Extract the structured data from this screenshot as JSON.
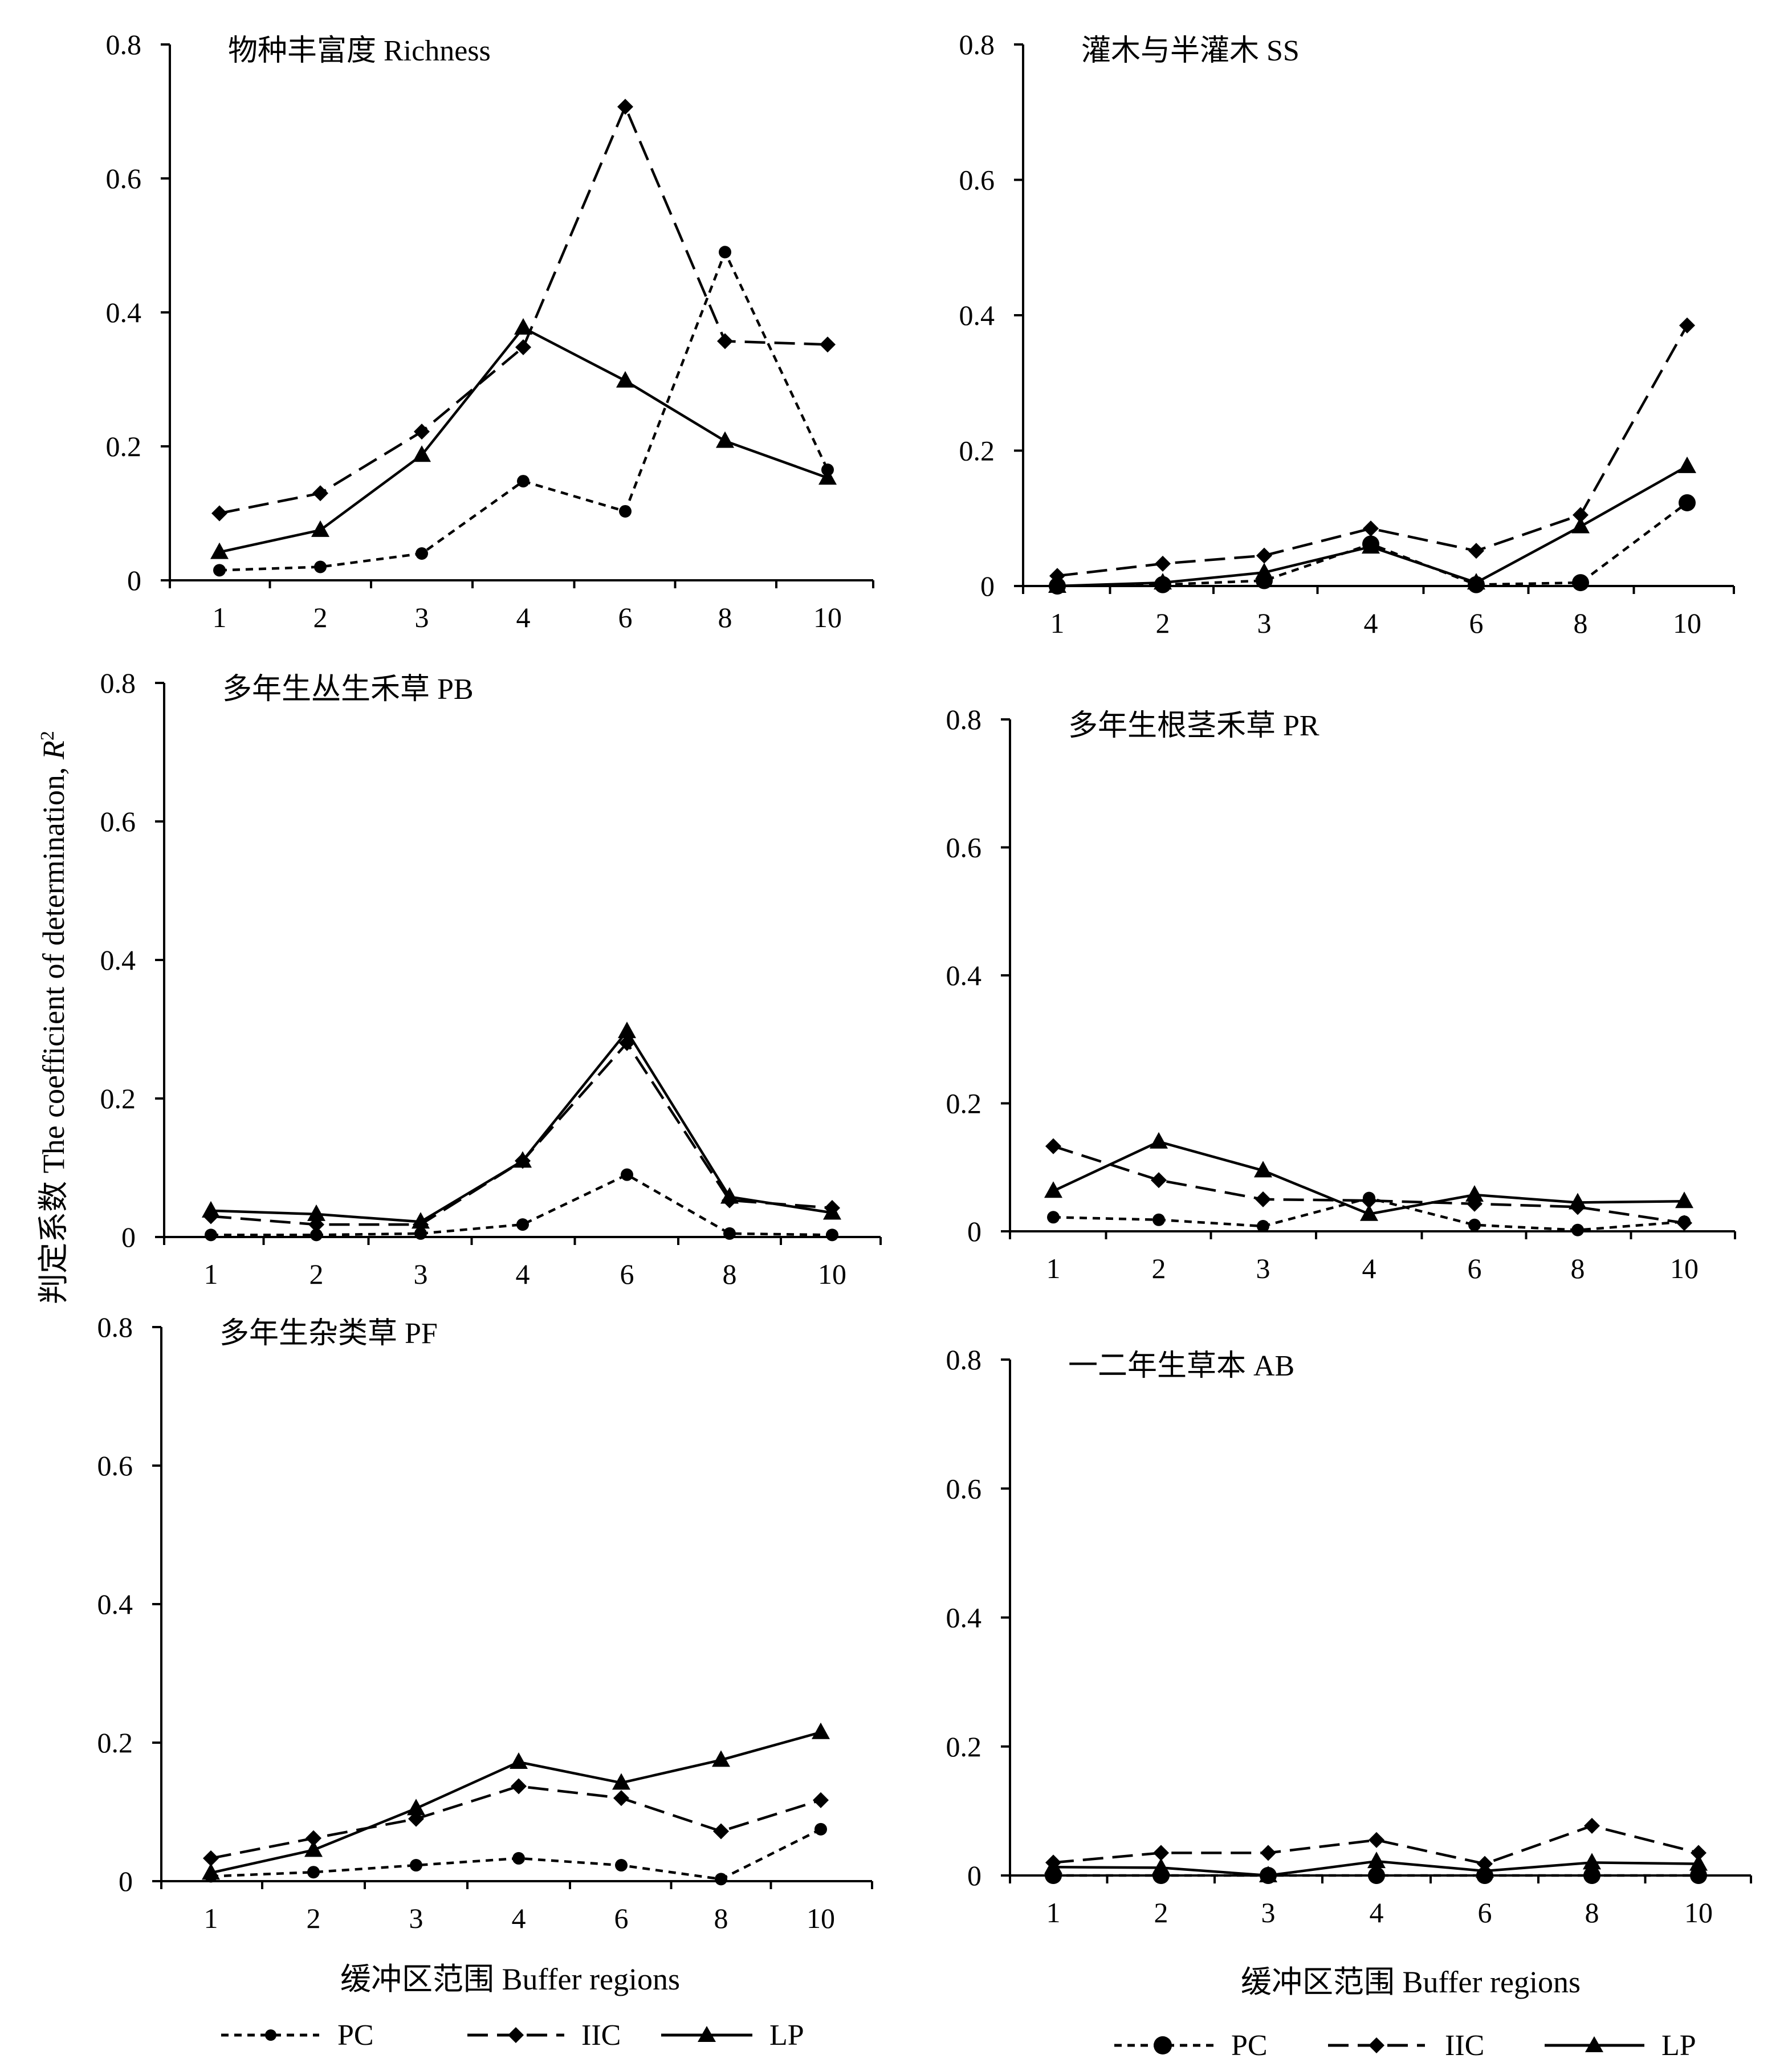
{
  "figure": {
    "ylabel_text": "判定系数 The coefficient of determination, ",
    "ylabel_italic": "R",
    "ylabel_sup": "2",
    "xlabel_left": "缓冲区范围 Buffer regions",
    "xlabel_right": "缓冲区范围 Buffer regions",
    "legend_left": [
      "PC",
      "IIC",
      "LP"
    ],
    "legend_right": [
      "PC",
      "IIC",
      "LP"
    ]
  },
  "chart_data": [
    {
      "type": "line",
      "title": "物种丰富度 Richness",
      "categories": [
        "1",
        "2",
        "3",
        "4",
        "6",
        "8",
        "10"
      ],
      "yticks": [
        "0",
        "0.2",
        "0.4",
        "0.6",
        "0.8"
      ],
      "ylim": [
        0,
        0.8
      ],
      "series": [
        {
          "name": "PC",
          "values": [
            0.015,
            0.02,
            0.04,
            0.148,
            0.103,
            0.49,
            0.165
          ]
        },
        {
          "name": "IIC",
          "values": [
            0.1,
            0.13,
            0.222,
            0.348,
            0.707,
            0.357,
            0.352
          ]
        },
        {
          "name": "LP",
          "values": [
            0.042,
            0.075,
            0.187,
            0.377,
            0.298,
            0.208,
            0.153
          ]
        }
      ]
    },
    {
      "type": "line",
      "title": "灌木与半灌木 SS",
      "categories": [
        "1",
        "2",
        "3",
        "4",
        "6",
        "8",
        "10"
      ],
      "yticks": [
        "0",
        "0.2",
        "0.4",
        "0.6",
        "0.8"
      ],
      "ylim": [
        0,
        0.8
      ],
      "series": [
        {
          "name": "PC",
          "values": [
            0.0,
            0.002,
            0.008,
            0.062,
            0.002,
            0.005,
            0.123
          ]
        },
        {
          "name": "IIC",
          "values": [
            0.015,
            0.033,
            0.045,
            0.085,
            0.052,
            0.105,
            0.385
          ]
        },
        {
          "name": "LP",
          "values": [
            0.0,
            0.005,
            0.02,
            0.058,
            0.005,
            0.088,
            0.177
          ]
        }
      ]
    },
    {
      "type": "line",
      "title": "多年生丛生禾草 PB",
      "categories": [
        "1",
        "2",
        "3",
        "4",
        "6",
        "8",
        "10"
      ],
      "yticks": [
        "0",
        "0.2",
        "0.4",
        "0.6",
        "0.8"
      ],
      "ylim": [
        0,
        0.8
      ],
      "series": [
        {
          "name": "PC",
          "values": [
            0.003,
            0.003,
            0.005,
            0.018,
            0.09,
            0.005,
            0.003
          ]
        },
        {
          "name": "IIC",
          "values": [
            0.03,
            0.018,
            0.018,
            0.11,
            0.28,
            0.053,
            0.042
          ]
        },
        {
          "name": "LP",
          "values": [
            0.038,
            0.033,
            0.022,
            0.11,
            0.297,
            0.058,
            0.035
          ]
        }
      ]
    },
    {
      "type": "line",
      "title": "多年生根茎禾草 PR",
      "categories": [
        "1",
        "2",
        "3",
        "4",
        "6",
        "8",
        "10"
      ],
      "yticks": [
        "0",
        "0.2",
        "0.4",
        "0.6",
        "0.8"
      ],
      "ylim": [
        0,
        0.8
      ],
      "series": [
        {
          "name": "PC",
          "values": [
            0.022,
            0.018,
            0.008,
            0.052,
            0.01,
            0.002,
            0.015
          ]
        },
        {
          "name": "IIC",
          "values": [
            0.133,
            0.08,
            0.05,
            0.048,
            0.043,
            0.038,
            0.013
          ]
        },
        {
          "name": "LP",
          "values": [
            0.063,
            0.14,
            0.095,
            0.027,
            0.057,
            0.045,
            0.047
          ]
        }
      ]
    },
    {
      "type": "line",
      "title": "多年生杂类草 PF",
      "categories": [
        "1",
        "2",
        "3",
        "4",
        "6",
        "8",
        "10"
      ],
      "yticks": [
        "0",
        "0.2",
        "0.4",
        "0.6",
        "0.8"
      ],
      "ylim": [
        0,
        0.8
      ],
      "series": [
        {
          "name": "PC",
          "values": [
            0.007,
            0.013,
            0.023,
            0.033,
            0.023,
            0.003,
            0.075
          ]
        },
        {
          "name": "IIC",
          "values": [
            0.033,
            0.062,
            0.09,
            0.137,
            0.12,
            0.072,
            0.117
          ]
        },
        {
          "name": "LP",
          "values": [
            0.012,
            0.045,
            0.105,
            0.172,
            0.142,
            0.175,
            0.215
          ]
        }
      ]
    },
    {
      "type": "line",
      "title": "一二年生草本 AB",
      "categories": [
        "1",
        "2",
        "3",
        "4",
        "6",
        "8",
        "10"
      ],
      "yticks": [
        "0",
        "0.2",
        "0.4",
        "0.6",
        "0.8"
      ],
      "ylim": [
        0,
        0.8
      ],
      "series": [
        {
          "name": "PC",
          "values": [
            0.0,
            0.0,
            0.0,
            0.0,
            0.0,
            0.0,
            0.0
          ]
        },
        {
          "name": "IIC",
          "values": [
            0.02,
            0.035,
            0.035,
            0.055,
            0.018,
            0.077,
            0.035
          ]
        },
        {
          "name": "LP",
          "values": [
            0.013,
            0.012,
            0.0,
            0.022,
            0.007,
            0.02,
            0.018
          ]
        }
      ]
    }
  ]
}
